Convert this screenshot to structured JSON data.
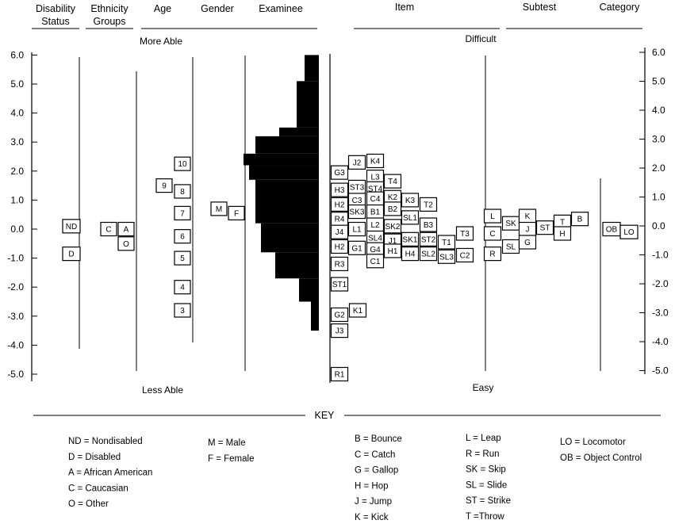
{
  "headers": {
    "disability": [
      "Disability",
      "Status"
    ],
    "ethnicity": [
      "Ethnicity",
      "Groups"
    ],
    "age": "Age",
    "gender": "Gender",
    "examinee": "Examinee",
    "item": "Item",
    "subtest": "Subtest",
    "category": "Category"
  },
  "annotations": {
    "more_able": "More Able",
    "less_able": "Less Able",
    "difficult": "Difficult",
    "easy": "Easy"
  },
  "key": {
    "title": "KEY",
    "columns": [
      [
        "ND = Nondisabled",
        "D = Disabled",
        "A = African American",
        "C = Caucasian",
        "O = Other"
      ],
      [
        "M = Male",
        "F = Female"
      ],
      [
        "B = Bounce",
        "C = Catch",
        "G = Gallop",
        "H = Hop",
        "J = Jump",
        "K = Kick"
      ],
      [
        "L = Leap",
        "R = Run",
        "SK = Skip",
        "SL = Slide",
        "ST = Strike",
        "T =Throw"
      ],
      [
        "LO = Locomotor",
        "OB = Object Control"
      ]
    ]
  },
  "chart_data": {
    "type": "wright-map",
    "scale": {
      "min": -5.0,
      "max": 6.0,
      "ticks": [
        "6.0",
        "5.0",
        "4.0",
        "3.0",
        "2.0",
        "1.0",
        "0.0",
        "-1.0",
        "-2.0",
        "-3.0",
        "-4.0",
        "-5.0"
      ]
    },
    "disability": [
      {
        "label": "ND",
        "value": 0.1
      },
      {
        "label": "D",
        "value": -0.85
      }
    ],
    "ethnicity": [
      {
        "label": "C",
        "value": 0.0
      },
      {
        "label": "A",
        "value": 0.0
      },
      {
        "label": "O",
        "value": -0.5
      }
    ],
    "age": [
      {
        "label": "10",
        "value": 2.25
      },
      {
        "label": "9",
        "value": 1.5
      },
      {
        "label": "8",
        "value": 1.3
      },
      {
        "label": "7",
        "value": 0.55
      },
      {
        "label": "6",
        "value": -0.25
      },
      {
        "label": "5",
        "value": -1.0
      },
      {
        "label": "4",
        "value": -2.0
      },
      {
        "label": "3",
        "value": -2.8
      }
    ],
    "gender": [
      {
        "label": "M",
        "value": 0.7
      },
      {
        "label": "F",
        "value": 0.55
      }
    ],
    "examinee_distribution": [
      {
        "from": 5.1,
        "to": 6.0,
        "width": 18
      },
      {
        "from": 3.5,
        "to": 5.1,
        "width": 28
      },
      {
        "from": 3.2,
        "to": 3.5,
        "width": 50
      },
      {
        "from": 2.6,
        "to": 3.2,
        "width": 80
      },
      {
        "from": 2.2,
        "to": 2.6,
        "width": 95
      },
      {
        "from": 1.7,
        "to": 2.2,
        "width": 88
      },
      {
        "from": 0.2,
        "to": 1.7,
        "width": 80
      },
      {
        "from": -0.8,
        "to": 0.2,
        "width": 73
      },
      {
        "from": -1.7,
        "to": -0.8,
        "width": 55
      },
      {
        "from": -2.5,
        "to": -1.7,
        "width": 25
      },
      {
        "from": -3.5,
        "to": -2.5,
        "width": 10
      }
    ],
    "items": [
      {
        "label": "G3",
        "value": 1.95
      },
      {
        "label": "H3",
        "value": 1.35
      },
      {
        "label": "H2",
        "value": 0.85
      },
      {
        "label": "R4",
        "value": 0.35
      },
      {
        "label": "J4",
        "value": -0.1
      },
      {
        "label": "H2",
        "value": -0.6
      },
      {
        "label": "R3",
        "value": -1.2
      },
      {
        "label": "ST1",
        "value": -1.9
      },
      {
        "label": "G2",
        "value": -2.95
      },
      {
        "label": "J3",
        "value": -3.5
      },
      {
        "label": "R1",
        "value": -5.0
      },
      {
        "label": "J2",
        "value": 2.3
      },
      {
        "label": "ST3",
        "value": 1.45
      },
      {
        "label": "C3",
        "value": 1.0
      },
      {
        "label": "SK3",
        "value": 0.6
      },
      {
        "label": "L1",
        "value": 0.0
      },
      {
        "label": "G1",
        "value": -0.65
      },
      {
        "label": "K1",
        "value": -2.8
      },
      {
        "label": "K4",
        "value": 2.35
      },
      {
        "label": "L3",
        "value": 1.8
      },
      {
        "label": "ST4",
        "value": 1.4
      },
      {
        "label": "C4",
        "value": 1.05
      },
      {
        "label": "B1",
        "value": 0.6
      },
      {
        "label": "L2",
        "value": 0.15
      },
      {
        "label": "SL4",
        "value": -0.3
      },
      {
        "label": "G4",
        "value": -0.7
      },
      {
        "label": "C1",
        "value": -1.1
      },
      {
        "label": "T4",
        "value": 1.65
      },
      {
        "label": "K2",
        "value": 1.1
      },
      {
        "label": "B2",
        "value": 0.7
      },
      {
        "label": "SK2",
        "value": 0.1
      },
      {
        "label": "J1",
        "value": -0.4
      },
      {
        "label": "H1",
        "value": -0.75
      },
      {
        "label": "K3",
        "value": 1.0
      },
      {
        "label": "SL1",
        "value": 0.4
      },
      {
        "label": "SK1",
        "value": -0.35
      },
      {
        "label": "H4",
        "value": -0.85
      },
      {
        "label": "T2",
        "value": 0.85
      },
      {
        "label": "B3",
        "value": 0.15
      },
      {
        "label": "ST2",
        "value": -0.35
      },
      {
        "label": "SL2",
        "value": -0.85
      },
      {
        "label": "T1",
        "value": -0.45
      },
      {
        "label": "SL3",
        "value": -0.95
      },
      {
        "label": "T3",
        "value": -0.15
      },
      {
        "label": "C2",
        "value": -0.9
      }
    ],
    "subtests": [
      {
        "label": "L",
        "value": 0.45
      },
      {
        "label": "C",
        "value": -0.15
      },
      {
        "label": "R",
        "value": -0.85
      },
      {
        "label": "SK",
        "value": 0.2
      },
      {
        "label": "SL",
        "value": -0.6
      },
      {
        "label": "K",
        "value": 0.45
      },
      {
        "label": "J",
        "value": 0.0
      },
      {
        "label": "G",
        "value": -0.45
      },
      {
        "label": "ST",
        "value": 0.05
      },
      {
        "label": "T",
        "value": 0.25
      },
      {
        "label": "H",
        "value": -0.15
      },
      {
        "label": "B",
        "value": 0.35
      }
    ],
    "categories": [
      {
        "label": "OB",
        "value": 0.0
      },
      {
        "label": "LO",
        "value": -0.1
      }
    ]
  }
}
